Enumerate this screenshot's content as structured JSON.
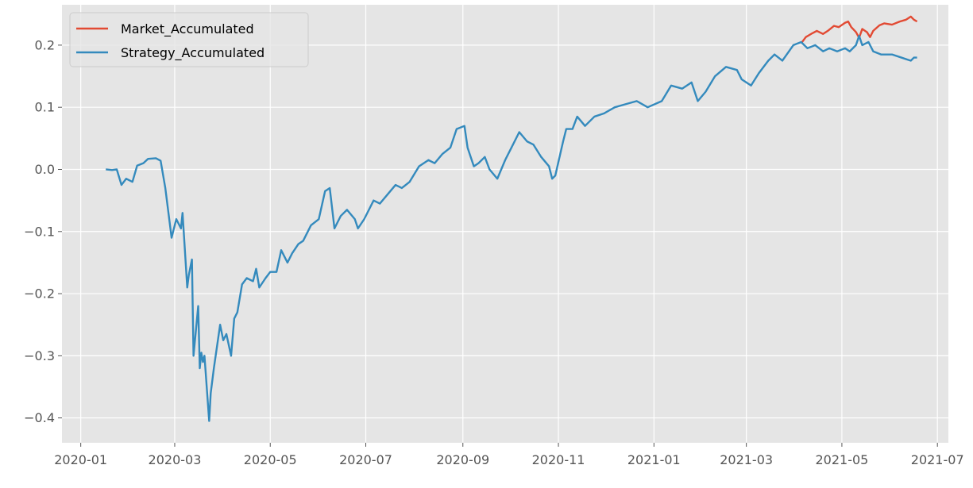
{
  "chart_data": {
    "type": "line",
    "style": "ggplot",
    "grid": true,
    "legend_position": "upper-left",
    "background_color": "#e5e5e5",
    "grid_color": "#ffffff",
    "x_axis": {
      "type": "date",
      "range": [
        "2019-12-20",
        "2021-07-08"
      ],
      "ticks": [
        "2020-01",
        "2020-03",
        "2020-05",
        "2020-07",
        "2020-09",
        "2020-11",
        "2021-01",
        "2021-03",
        "2021-05",
        "2021-07"
      ]
    },
    "y_axis": {
      "range": [
        -0.44,
        0.265
      ],
      "ticks": [
        -0.4,
        -0.3,
        -0.2,
        -0.1,
        0.0,
        0.1,
        0.2
      ],
      "tick_labels": [
        "−0.4",
        "−0.3",
        "−0.2",
        "−0.1",
        "0.0",
        "0.1",
        "0.2"
      ]
    },
    "series": [
      {
        "name": "Market_Accumulated",
        "color": "#e24a33",
        "points": [
          [
            "2021-04-05",
            0.203
          ],
          [
            "2021-04-08",
            0.213
          ],
          [
            "2021-04-12",
            0.219
          ],
          [
            "2021-04-15",
            0.223
          ],
          [
            "2021-04-19",
            0.218
          ],
          [
            "2021-04-22",
            0.223
          ],
          [
            "2021-04-26",
            0.231
          ],
          [
            "2021-04-29",
            0.229
          ],
          [
            "2021-05-03",
            0.236
          ],
          [
            "2021-05-05",
            0.238
          ],
          [
            "2021-05-07",
            0.229
          ],
          [
            "2021-05-10",
            0.221
          ],
          [
            "2021-05-12",
            0.212
          ],
          [
            "2021-05-14",
            0.226
          ],
          [
            "2021-05-17",
            0.221
          ],
          [
            "2021-05-19",
            0.213
          ],
          [
            "2021-05-21",
            0.223
          ],
          [
            "2021-05-25",
            0.232
          ],
          [
            "2021-05-28",
            0.235
          ],
          [
            "2021-06-02",
            0.233
          ],
          [
            "2021-06-07",
            0.238
          ],
          [
            "2021-06-11",
            0.241
          ],
          [
            "2021-06-14",
            0.246
          ],
          [
            "2021-06-16",
            0.241
          ],
          [
            "2021-06-18",
            0.238
          ]
        ]
      },
      {
        "name": "Strategy_Accumulated",
        "color": "#348abd",
        "points": [
          [
            "2020-01-17",
            0.0
          ],
          [
            "2020-01-21",
            -0.001
          ],
          [
            "2020-01-24",
            0.0
          ],
          [
            "2020-01-27",
            -0.025
          ],
          [
            "2020-01-30",
            -0.015
          ],
          [
            "2020-02-03",
            -0.02
          ],
          [
            "2020-02-06",
            0.006
          ],
          [
            "2020-02-10",
            0.01
          ],
          [
            "2020-02-13",
            0.017
          ],
          [
            "2020-02-18",
            0.018
          ],
          [
            "2020-02-21",
            0.014
          ],
          [
            "2020-02-24",
            -0.03
          ],
          [
            "2020-02-28",
            -0.11
          ],
          [
            "2020-03-02",
            -0.08
          ],
          [
            "2020-03-05",
            -0.095
          ],
          [
            "2020-03-06",
            -0.07
          ],
          [
            "2020-03-09",
            -0.19
          ],
          [
            "2020-03-10",
            -0.17
          ],
          [
            "2020-03-12",
            -0.145
          ],
          [
            "2020-03-13",
            -0.3
          ],
          [
            "2020-03-16",
            -0.22
          ],
          [
            "2020-03-17",
            -0.32
          ],
          [
            "2020-03-18",
            -0.295
          ],
          [
            "2020-03-19",
            -0.31
          ],
          [
            "2020-03-20",
            -0.3
          ],
          [
            "2020-03-23",
            -0.405
          ],
          [
            "2020-03-24",
            -0.36
          ],
          [
            "2020-03-26",
            -0.32
          ],
          [
            "2020-03-30",
            -0.25
          ],
          [
            "2020-04-01",
            -0.275
          ],
          [
            "2020-04-03",
            -0.265
          ],
          [
            "2020-04-06",
            -0.3
          ],
          [
            "2020-04-08",
            -0.24
          ],
          [
            "2020-04-10",
            -0.23
          ],
          [
            "2020-04-13",
            -0.185
          ],
          [
            "2020-04-16",
            -0.175
          ],
          [
            "2020-04-20",
            -0.18
          ],
          [
            "2020-04-22",
            -0.16
          ],
          [
            "2020-04-24",
            -0.19
          ],
          [
            "2020-04-28",
            -0.175
          ],
          [
            "2020-05-01",
            -0.165
          ],
          [
            "2020-05-05",
            -0.165
          ],
          [
            "2020-05-08",
            -0.13
          ],
          [
            "2020-05-12",
            -0.15
          ],
          [
            "2020-05-15",
            -0.135
          ],
          [
            "2020-05-19",
            -0.12
          ],
          [
            "2020-05-22",
            -0.115
          ],
          [
            "2020-05-27",
            -0.09
          ],
          [
            "2020-06-01",
            -0.08
          ],
          [
            "2020-06-05",
            -0.035
          ],
          [
            "2020-06-08",
            -0.03
          ],
          [
            "2020-06-11",
            -0.095
          ],
          [
            "2020-06-15",
            -0.075
          ],
          [
            "2020-06-19",
            -0.065
          ],
          [
            "2020-06-24",
            -0.08
          ],
          [
            "2020-06-26",
            -0.095
          ],
          [
            "2020-06-30",
            -0.08
          ],
          [
            "2020-07-06",
            -0.05
          ],
          [
            "2020-07-10",
            -0.055
          ],
          [
            "2020-07-15",
            -0.04
          ],
          [
            "2020-07-20",
            -0.025
          ],
          [
            "2020-07-24",
            -0.03
          ],
          [
            "2020-07-29",
            -0.02
          ],
          [
            "2020-08-04",
            0.005
          ],
          [
            "2020-08-10",
            0.015
          ],
          [
            "2020-08-14",
            0.01
          ],
          [
            "2020-08-19",
            0.025
          ],
          [
            "2020-08-24",
            0.035
          ],
          [
            "2020-08-28",
            0.065
          ],
          [
            "2020-09-02",
            0.07
          ],
          [
            "2020-09-04",
            0.035
          ],
          [
            "2020-09-08",
            0.005
          ],
          [
            "2020-09-11",
            0.01
          ],
          [
            "2020-09-15",
            0.02
          ],
          [
            "2020-09-18",
            0.0
          ],
          [
            "2020-09-23",
            -0.015
          ],
          [
            "2020-09-28",
            0.015
          ],
          [
            "2020-10-02",
            0.035
          ],
          [
            "2020-10-07",
            0.06
          ],
          [
            "2020-10-12",
            0.045
          ],
          [
            "2020-10-16",
            0.04
          ],
          [
            "2020-10-21",
            0.02
          ],
          [
            "2020-10-26",
            0.005
          ],
          [
            "2020-10-28",
            -0.015
          ],
          [
            "2020-10-30",
            -0.01
          ],
          [
            "2020-11-04",
            0.045
          ],
          [
            "2020-11-06",
            0.065
          ],
          [
            "2020-11-10",
            0.065
          ],
          [
            "2020-11-13",
            0.085
          ],
          [
            "2020-11-18",
            0.07
          ],
          [
            "2020-11-24",
            0.085
          ],
          [
            "2020-11-30",
            0.09
          ],
          [
            "2020-12-07",
            0.1
          ],
          [
            "2020-12-14",
            0.105
          ],
          [
            "2020-12-21",
            0.11
          ],
          [
            "2020-12-28",
            0.1
          ],
          [
            "2021-01-06",
            0.11
          ],
          [
            "2021-01-12",
            0.135
          ],
          [
            "2021-01-19",
            0.13
          ],
          [
            "2021-01-25",
            0.14
          ],
          [
            "2021-01-29",
            0.11
          ],
          [
            "2021-02-03",
            0.125
          ],
          [
            "2021-02-09",
            0.15
          ],
          [
            "2021-02-16",
            0.165
          ],
          [
            "2021-02-23",
            0.16
          ],
          [
            "2021-02-26",
            0.145
          ],
          [
            "2021-03-04",
            0.135
          ],
          [
            "2021-03-09",
            0.155
          ],
          [
            "2021-03-15",
            0.175
          ],
          [
            "2021-03-19",
            0.185
          ],
          [
            "2021-03-24",
            0.175
          ],
          [
            "2021-03-31",
            0.2
          ],
          [
            "2021-04-05",
            0.205
          ],
          [
            "2021-04-09",
            0.195
          ],
          [
            "2021-04-14",
            0.2
          ],
          [
            "2021-04-19",
            0.19
          ],
          [
            "2021-04-23",
            0.195
          ],
          [
            "2021-04-28",
            0.19
          ],
          [
            "2021-05-03",
            0.195
          ],
          [
            "2021-05-06",
            0.19
          ],
          [
            "2021-05-10",
            0.2
          ],
          [
            "2021-05-12",
            0.215
          ],
          [
            "2021-05-14",
            0.2
          ],
          [
            "2021-05-18",
            0.205
          ],
          [
            "2021-05-21",
            0.19
          ],
          [
            "2021-05-26",
            0.185
          ],
          [
            "2021-06-02",
            0.185
          ],
          [
            "2021-06-08",
            0.18
          ],
          [
            "2021-06-14",
            0.175
          ],
          [
            "2021-06-16",
            0.18
          ],
          [
            "2021-06-18",
            0.18
          ]
        ]
      }
    ]
  }
}
